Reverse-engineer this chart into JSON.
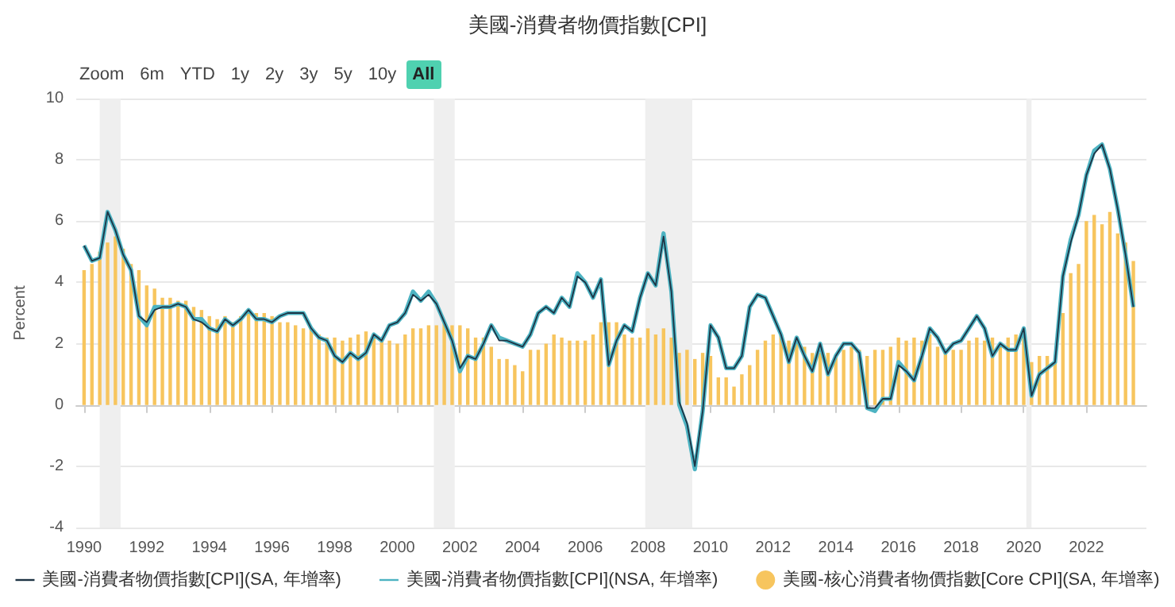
{
  "chart_data": {
    "type": "line",
    "title": "美國-消費者物價指數[CPI]",
    "ylabel": "Percent",
    "annotations": [
      "Zoom",
      "6m",
      "YTD",
      "1y",
      "2y",
      "3y",
      "5y",
      "10y",
      "All"
    ],
    "x": [
      "1990-01",
      "1990-04",
      "1990-07",
      "1990-10",
      "1991-01",
      "1991-04",
      "1991-07",
      "1991-10",
      "1992-01",
      "1992-04",
      "1992-07",
      "1992-10",
      "1993-01",
      "1993-04",
      "1993-07",
      "1993-10",
      "1994-01",
      "1994-04",
      "1994-07",
      "1994-10",
      "1995-01",
      "1995-04",
      "1995-07",
      "1995-10",
      "1996-01",
      "1996-04",
      "1996-07",
      "1996-10",
      "1997-01",
      "1997-04",
      "1997-07",
      "1997-10",
      "1998-01",
      "1998-04",
      "1998-07",
      "1998-10",
      "1999-01",
      "1999-04",
      "1999-07",
      "1999-10",
      "2000-01",
      "2000-04",
      "2000-07",
      "2000-10",
      "2001-01",
      "2001-04",
      "2001-07",
      "2001-10",
      "2002-01",
      "2002-04",
      "2002-07",
      "2002-10",
      "2003-01",
      "2003-04",
      "2003-07",
      "2003-10",
      "2004-01",
      "2004-04",
      "2004-07",
      "2004-10",
      "2005-01",
      "2005-04",
      "2005-07",
      "2005-10",
      "2006-01",
      "2006-04",
      "2006-07",
      "2006-10",
      "2007-01",
      "2007-04",
      "2007-07",
      "2007-10",
      "2008-01",
      "2008-04",
      "2008-07",
      "2008-10",
      "2009-01",
      "2009-04",
      "2009-07",
      "2009-10",
      "2010-01",
      "2010-04",
      "2010-07",
      "2010-10",
      "2011-01",
      "2011-04",
      "2011-07",
      "2011-10",
      "2012-01",
      "2012-04",
      "2012-07",
      "2012-10",
      "2013-01",
      "2013-04",
      "2013-07",
      "2013-10",
      "2014-01",
      "2014-04",
      "2014-07",
      "2014-10",
      "2015-01",
      "2015-04",
      "2015-07",
      "2015-10",
      "2016-01",
      "2016-04",
      "2016-07",
      "2016-10",
      "2017-01",
      "2017-04",
      "2017-07",
      "2017-10",
      "2018-01",
      "2018-04",
      "2018-07",
      "2018-10",
      "2019-01",
      "2019-04",
      "2019-07",
      "2019-10",
      "2020-01",
      "2020-04",
      "2020-07",
      "2020-10",
      "2021-01",
      "2021-04",
      "2021-07",
      "2021-10",
      "2022-01",
      "2022-04",
      "2022-07",
      "2022-10",
      "2023-01",
      "2023-04",
      "2023-07"
    ],
    "series": [
      {
        "name": "美國-核心消費者物價指數[Core CPI](SA, 年增率)",
        "type": "bar",
        "color": "#f7c55e",
        "values": [
          4.4,
          4.6,
          5.0,
          5.3,
          5.5,
          5.1,
          4.6,
          4.4,
          3.9,
          3.8,
          3.5,
          3.5,
          3.4,
          3.4,
          3.2,
          3.1,
          2.9,
          2.8,
          2.9,
          2.7,
          2.9,
          3.0,
          3.0,
          3.0,
          2.9,
          2.7,
          2.7,
          2.6,
          2.5,
          2.5,
          2.3,
          2.2,
          2.2,
          2.1,
          2.2,
          2.3,
          2.4,
          2.2,
          2.1,
          2.1,
          2.0,
          2.3,
          2.5,
          2.5,
          2.6,
          2.6,
          2.7,
          2.6,
          2.6,
          2.5,
          2.2,
          2.2,
          1.9,
          1.5,
          1.5,
          1.3,
          1.1,
          1.8,
          1.8,
          2.0,
          2.3,
          2.2,
          2.1,
          2.1,
          2.1,
          2.3,
          2.7,
          2.7,
          2.7,
          2.3,
          2.2,
          2.2,
          2.5,
          2.3,
          2.5,
          2.2,
          1.7,
          1.8,
          1.5,
          1.7,
          1.6,
          0.9,
          0.9,
          0.6,
          1.0,
          1.3,
          1.8,
          2.1,
          2.3,
          2.3,
          2.1,
          2.0,
          1.9,
          1.7,
          1.7,
          1.7,
          1.6,
          1.8,
          1.9,
          1.8,
          1.6,
          1.8,
          1.8,
          1.9,
          2.2,
          2.1,
          2.2,
          2.1,
          2.3,
          1.9,
          1.7,
          1.8,
          1.8,
          2.1,
          2.2,
          2.1,
          2.2,
          2.0,
          2.2,
          2.3,
          2.3,
          1.4,
          1.6,
          1.6,
          1.4,
          3.0,
          4.3,
          4.6,
          6.0,
          6.2,
          5.9,
          6.3,
          5.6,
          5.3,
          4.7
        ]
      },
      {
        "name": "美國-消費者物價指數[CPI](SA, 年增率)",
        "color": "#1d3344",
        "values": [
          5.2,
          4.7,
          4.8,
          6.3,
          5.7,
          4.9,
          4.4,
          2.9,
          2.7,
          3.1,
          3.2,
          3.2,
          3.3,
          3.2,
          2.8,
          2.7,
          2.5,
          2.4,
          2.8,
          2.6,
          2.8,
          3.1,
          2.8,
          2.8,
          2.7,
          2.9,
          3.0,
          3.0,
          3.0,
          2.5,
          2.2,
          2.1,
          1.6,
          1.4,
          1.7,
          1.5,
          1.7,
          2.3,
          2.1,
          2.6,
          2.7,
          3.0,
          3.6,
          3.4,
          3.6,
          3.3,
          2.7,
          2.1,
          1.2,
          1.6,
          1.5,
          2.0,
          2.6,
          2.1,
          2.1,
          2.0,
          1.9,
          2.3,
          3.0,
          3.2,
          3.0,
          3.5,
          3.2,
          4.2,
          4.0,
          3.5,
          4.1,
          1.3,
          2.1,
          2.6,
          2.4,
          3.5,
          4.3,
          3.9,
          5.5,
          3.7,
          0.1,
          -0.6,
          -2.0,
          -0.2,
          2.6,
          2.2,
          1.2,
          1.2,
          1.6,
          3.2,
          3.6,
          3.5,
          2.9,
          2.3,
          1.4,
          2.2,
          1.6,
          1.1,
          2.0,
          1.0,
          1.6,
          2.0,
          2.0,
          1.7,
          -0.1,
          -0.1,
          0.2,
          0.2,
          1.3,
          1.1,
          0.8,
          1.6,
          2.5,
          2.2,
          1.7,
          2.0,
          2.1,
          2.5,
          2.9,
          2.5,
          1.6,
          2.0,
          1.8,
          1.8,
          2.5,
          0.3,
          1.0,
          1.2,
          1.4,
          4.2,
          5.3,
          6.2,
          7.5,
          8.2,
          8.5,
          7.7,
          6.4,
          4.9,
          3.2
        ]
      },
      {
        "name": "美國-消費者物價指數[CPI](NSA, 年增率)",
        "color": "#4db3c2",
        "values": [
          5.2,
          4.7,
          4.8,
          6.3,
          5.7,
          4.9,
          4.4,
          2.9,
          2.6,
          3.2,
          3.2,
          3.2,
          3.3,
          3.2,
          2.8,
          2.8,
          2.5,
          2.4,
          2.8,
          2.6,
          2.8,
          3.1,
          2.8,
          2.8,
          2.7,
          2.9,
          3.0,
          3.0,
          3.0,
          2.5,
          2.2,
          2.1,
          1.6,
          1.4,
          1.7,
          1.5,
          1.7,
          2.3,
          2.1,
          2.6,
          2.7,
          3.0,
          3.7,
          3.4,
          3.7,
          3.3,
          2.7,
          2.1,
          1.1,
          1.6,
          1.5,
          2.0,
          2.6,
          2.2,
          2.1,
          2.0,
          1.9,
          2.3,
          3.0,
          3.2,
          3.0,
          3.5,
          3.2,
          4.3,
          4.0,
          3.5,
          4.1,
          1.3,
          2.1,
          2.6,
          2.4,
          3.5,
          4.3,
          3.9,
          5.6,
          3.7,
          0.0,
          -0.7,
          -2.1,
          -0.2,
          2.6,
          2.2,
          1.2,
          1.2,
          1.6,
          3.2,
          3.6,
          3.5,
          2.9,
          2.3,
          1.4,
          2.2,
          1.6,
          1.1,
          2.0,
          1.0,
          1.6,
          2.0,
          2.0,
          1.7,
          -0.1,
          -0.2,
          0.2,
          0.2,
          1.4,
          1.1,
          0.8,
          1.6,
          2.5,
          2.2,
          1.7,
          2.0,
          2.1,
          2.5,
          2.9,
          2.5,
          1.6,
          2.0,
          1.8,
          1.8,
          2.5,
          0.3,
          1.0,
          1.2,
          1.4,
          4.2,
          5.4,
          6.2,
          7.5,
          8.3,
          8.5,
          7.7,
          6.4,
          4.9,
          3.2
        ]
      }
    ],
    "xlim": [
      "1989-10",
      "2023-12"
    ],
    "xticks": [
      "1990",
      "1992",
      "1994",
      "1996",
      "1998",
      "2000",
      "2002",
      "2004",
      "2006",
      "2008",
      "2010",
      "2012",
      "2014",
      "2016",
      "2018",
      "2020",
      "2022"
    ],
    "ylim": [
      -4,
      10
    ],
    "yticks": [
      -4,
      -2,
      0,
      2,
      4,
      6,
      8,
      10
    ],
    "bands": [
      {
        "axis": "x",
        "from": "1990-07",
        "to": "1991-03",
        "color": "#efefef"
      },
      {
        "axis": "x",
        "from": "2001-03",
        "to": "2001-11",
        "color": "#efefef"
      },
      {
        "axis": "x",
        "from": "2007-12",
        "to": "2009-06",
        "color": "#efefef"
      },
      {
        "axis": "x",
        "from": "2020-02",
        "to": "2020-04",
        "color": "#efefef"
      }
    ],
    "grid": "y",
    "legend": "bottom",
    "marker": "none",
    "line_style": "solid"
  }
}
